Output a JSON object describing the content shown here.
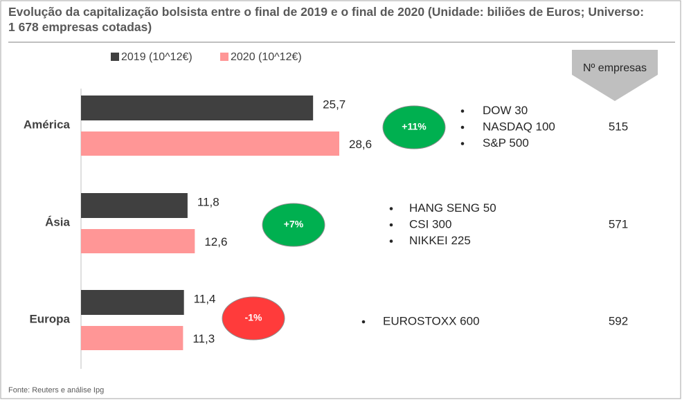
{
  "chart_data": {
    "type": "bar",
    "orientation": "horizontal",
    "title": "Evolução da capitalização bolsista entre o final de 2019 e o final de 2020 (Unidade: biliões de Euros; Universo: 1 678 empresas cotadas)",
    "categories": [
      "América",
      "Ásia",
      "Europa"
    ],
    "series": [
      {
        "name": "2019 (10^12€)",
        "color": "#404040",
        "values": [
          25.7,
          11.8,
          11.4
        ],
        "value_labels": [
          "25,7",
          "11,8",
          "11,4"
        ]
      },
      {
        "name": "2020 (10^12€)",
        "color": "#ff9696",
        "values": [
          28.6,
          12.6,
          11.3
        ],
        "value_labels": [
          "28,6",
          "12,6",
          "11,3"
        ]
      }
    ],
    "change": {
      "values": [
        11,
        7,
        -1
      ],
      "value_labels": [
        "+11%",
        "+7%",
        "-1%"
      ],
      "colors": [
        "#00b050",
        "#00b050",
        "#ff3b3b"
      ]
    },
    "indices": [
      [
        "DOW 30",
        "NASDAQ 100",
        "S&P 500"
      ],
      [
        "HANG SENG 50",
        "CSI 300",
        "NIKKEI 225"
      ],
      [
        "EUROSTOXX 600"
      ]
    ],
    "companies_header": "Nº empresas",
    "companies": [
      515,
      571,
      592
    ],
    "source": "Fonte: Reuters e análise Ipg"
  }
}
